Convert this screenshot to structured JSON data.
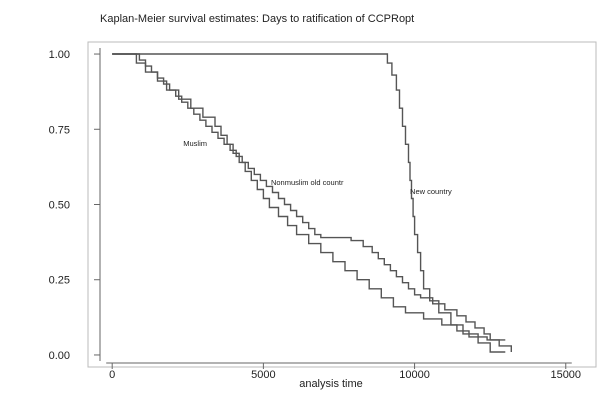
{
  "chart_data": {
    "type": "line",
    "title": "Kaplan-Meier survival estimates: Days to ratification of CCPRopt",
    "xlabel": "analysis time",
    "ylabel": "",
    "xlim": [
      -800,
      16000
    ],
    "ylim": [
      -0.04,
      1.04
    ],
    "x_ticks": [
      0,
      5000,
      10000,
      15000
    ],
    "x_tick_labels": [
      "0",
      "5000",
      "10000",
      "15000"
    ],
    "y_ticks": [
      0,
      0.25,
      0.5,
      0.75,
      1
    ],
    "y_tick_labels": [
      "0.00",
      "0.25",
      "0.50",
      "0.75",
      "1.00"
    ],
    "grid": false,
    "line_color": "#555555",
    "series": [
      {
        "name": "Muslim",
        "step": true,
        "points": [
          [
            0,
            1.0
          ],
          [
            800,
            0.97
          ],
          [
            1100,
            0.94
          ],
          [
            1500,
            0.91
          ],
          [
            1800,
            0.88
          ],
          [
            2200,
            0.85
          ],
          [
            2600,
            0.82
          ],
          [
            3000,
            0.79
          ],
          [
            3400,
            0.76
          ],
          [
            3600,
            0.73
          ],
          [
            3800,
            0.7
          ],
          [
            4000,
            0.67
          ],
          [
            4200,
            0.64
          ],
          [
            4400,
            0.61
          ],
          [
            4600,
            0.58
          ],
          [
            4800,
            0.55
          ],
          [
            5000,
            0.52
          ],
          [
            5200,
            0.49
          ],
          [
            5500,
            0.46
          ],
          [
            5800,
            0.43
          ],
          [
            6100,
            0.4
          ],
          [
            6500,
            0.37
          ],
          [
            6900,
            0.34
          ],
          [
            7300,
            0.31
          ],
          [
            7700,
            0.28
          ],
          [
            8100,
            0.25
          ],
          [
            8500,
            0.22
          ],
          [
            8900,
            0.19
          ],
          [
            9300,
            0.16
          ],
          [
            9700,
            0.14
          ],
          [
            10300,
            0.12
          ],
          [
            10900,
            0.1
          ],
          [
            11400,
            0.08
          ],
          [
            11800,
            0.06
          ],
          [
            12400,
            0.05
          ],
          [
            13000,
            0.05
          ]
        ]
      },
      {
        "name": "Nonmuslim old countr",
        "step": true,
        "points": [
          [
            0,
            1.0
          ],
          [
            900,
            0.98
          ],
          [
            1100,
            0.96
          ],
          [
            1300,
            0.94
          ],
          [
            1500,
            0.92
          ],
          [
            1700,
            0.9
          ],
          [
            1900,
            0.88
          ],
          [
            2100,
            0.86
          ],
          [
            2300,
            0.84
          ],
          [
            2500,
            0.82
          ],
          [
            2700,
            0.8
          ],
          [
            2900,
            0.78
          ],
          [
            3100,
            0.76
          ],
          [
            3300,
            0.74
          ],
          [
            3500,
            0.72
          ],
          [
            3700,
            0.7
          ],
          [
            3900,
            0.68
          ],
          [
            4100,
            0.66
          ],
          [
            4300,
            0.64
          ],
          [
            4500,
            0.62
          ],
          [
            4700,
            0.6
          ],
          [
            4900,
            0.58
          ],
          [
            5100,
            0.56
          ],
          [
            5300,
            0.54
          ],
          [
            5500,
            0.52
          ],
          [
            5700,
            0.5
          ],
          [
            5900,
            0.48
          ],
          [
            6100,
            0.46
          ],
          [
            6300,
            0.44
          ],
          [
            6500,
            0.42
          ],
          [
            6700,
            0.4
          ],
          [
            6900,
            0.39
          ],
          [
            7900,
            0.38
          ],
          [
            8300,
            0.36
          ],
          [
            8600,
            0.34
          ],
          [
            8800,
            0.32
          ],
          [
            9000,
            0.3
          ],
          [
            9200,
            0.28
          ],
          [
            9400,
            0.26
          ],
          [
            9600,
            0.24
          ],
          [
            9800,
            0.22
          ],
          [
            10000,
            0.2
          ],
          [
            10200,
            0.19
          ],
          [
            10600,
            0.17
          ],
          [
            11000,
            0.15
          ],
          [
            11400,
            0.13
          ],
          [
            11700,
            0.11
          ],
          [
            12000,
            0.09
          ],
          [
            12300,
            0.07
          ],
          [
            12500,
            0.05
          ],
          [
            12800,
            0.03
          ],
          [
            13200,
            0.01
          ]
        ]
      },
      {
        "name": "New country",
        "step": true,
        "points": [
          [
            0,
            1.0
          ],
          [
            9100,
            0.97
          ],
          [
            9250,
            0.93
          ],
          [
            9400,
            0.88
          ],
          [
            9500,
            0.82
          ],
          [
            9600,
            0.76
          ],
          [
            9700,
            0.7
          ],
          [
            9800,
            0.64
          ],
          [
            9850,
            0.58
          ],
          [
            9900,
            0.52
          ],
          [
            9950,
            0.46
          ],
          [
            10000,
            0.4
          ],
          [
            10100,
            0.34
          ],
          [
            10200,
            0.28
          ],
          [
            10300,
            0.22
          ],
          [
            10500,
            0.18
          ],
          [
            10800,
            0.14
          ],
          [
            11200,
            0.1
          ],
          [
            11600,
            0.07
          ],
          [
            12100,
            0.04
          ],
          [
            12500,
            0.01
          ],
          [
            13000,
            0.01
          ]
        ]
      }
    ],
    "annotations": [
      {
        "text": "Muslim",
        "x": 2350,
        "y": 0.695
      },
      {
        "text": "Nonmuslim old countr",
        "x": 5250,
        "y": 0.565
      },
      {
        "text": "New country",
        "x": 9850,
        "y": 0.535
      }
    ]
  }
}
